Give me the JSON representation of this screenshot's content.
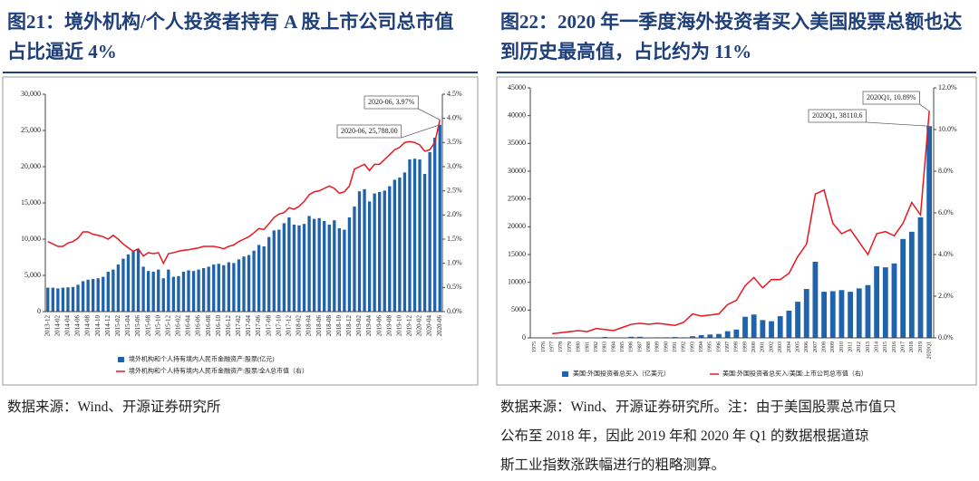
{
  "chart_data": [
    {
      "type": "bar",
      "title": [
        "图21：境外机构/个人投资者持有 A 股上市公司总市值",
        "占比逼近 4%"
      ],
      "categories": [
        "2013-12",
        null,
        "2014-02",
        null,
        "2014-04",
        null,
        "2014-06",
        null,
        "2014-08",
        null,
        "2014-10",
        null,
        "2014-12",
        null,
        "2015-02",
        null,
        "2015-04",
        null,
        "2015-06",
        null,
        "2015-08",
        null,
        "2015-10",
        null,
        "2015-12",
        null,
        "2016-02",
        null,
        "2016-04",
        null,
        "2016-06",
        null,
        "2016-08",
        null,
        "2016-10",
        null,
        "2016-12",
        null,
        "2017-02",
        null,
        "2017-04",
        null,
        "2017-06",
        null,
        "2017-08",
        null,
        "2017-10",
        null,
        "2017-12",
        null,
        "2018-02",
        null,
        "2018-04",
        null,
        "2018-06",
        null,
        "2018-08",
        null,
        "2018-10",
        null,
        "2018-12",
        null,
        "2019-02",
        null,
        "2019-04",
        null,
        "2019-06",
        null,
        "2019-08",
        null,
        "2019-10",
        null,
        "2019-12",
        null,
        "2020-02",
        null,
        "2020-04",
        null,
        "2020-06"
      ],
      "series": [
        {
          "name": "境外机构和个人持有境内人民币金融资产:股票(亿元)",
          "color": "#1f63ad",
          "values": [
            3300,
            3300,
            3200,
            3300,
            3350,
            3400,
            3700,
            4200,
            4400,
            4500,
            4600,
            4800,
            5500,
            5800,
            6500,
            7300,
            7900,
            8300,
            8600,
            6200,
            5600,
            5500,
            5800,
            4600,
            5800,
            4800,
            4900,
            5500,
            5700,
            5600,
            5800,
            6000,
            6200,
            6500,
            6600,
            6400,
            6800,
            6700,
            7200,
            7600,
            7800,
            8400,
            9200,
            9000,
            10300,
            11200,
            11300,
            12200,
            13000,
            12000,
            11900,
            12100,
            13200,
            12800,
            12900,
            12500,
            12000,
            12600,
            11500,
            11300,
            13000,
            14500,
            16600,
            16900,
            15200,
            16300,
            16500,
            16700,
            17300,
            18200,
            18500,
            19200,
            21000,
            21100,
            21000,
            19000,
            22000,
            24000,
            25788
          ]
        },
        {
          "name": "境外机构和个人持有境内人民币金融资产:股票/全A总市值（右）",
          "color": "#e8171f",
          "type": "line",
          "axis": "y2",
          "values": [
            1.45,
            1.4,
            1.35,
            1.35,
            1.42,
            1.45,
            1.52,
            1.65,
            1.65,
            1.6,
            1.58,
            1.55,
            1.5,
            1.58,
            1.5,
            1.4,
            1.32,
            1.25,
            1.3,
            1.15,
            1.22,
            1.2,
            1.22,
            1.0,
            1.2,
            1.22,
            1.25,
            1.27,
            1.28,
            1.3,
            1.32,
            1.35,
            1.35,
            1.35,
            1.33,
            1.3,
            1.35,
            1.38,
            1.45,
            1.5,
            1.55,
            1.63,
            1.72,
            1.7,
            1.82,
            1.95,
            2.02,
            2.05,
            2.15,
            2.12,
            2.18,
            2.28,
            2.42,
            2.48,
            2.5,
            2.55,
            2.6,
            2.55,
            2.45,
            2.48,
            2.6,
            2.95,
            3.0,
            3.05,
            2.92,
            3.05,
            3.05,
            3.15,
            3.25,
            3.35,
            3.4,
            3.5,
            3.52,
            3.5,
            3.45,
            3.32,
            3.35,
            3.5,
            3.97
          ]
        }
      ],
      "ylim": [
        0,
        30000
      ],
      "yticks": [
        0,
        {
          "value": 5000,
          "label": "5,000"
        },
        {
          "value": 10000,
          "label": "10,000"
        },
        {
          "value": 15000,
          "label": "15,000"
        },
        {
          "value": 20000,
          "label": "20,000"
        },
        {
          "value": 25000,
          "label": "25,000"
        },
        {
          "value": 30000,
          "label": "30,000"
        }
      ],
      "y2lim": [
        0,
        4.5
      ],
      "y2ticks": [
        {
          "value": 0,
          "label": "0.0%"
        },
        {
          "value": 0.5,
          "label": "0.5%"
        },
        {
          "value": 1,
          "label": "1.0%"
        },
        {
          "value": 1.5,
          "label": "1.5%"
        },
        {
          "value": 2,
          "label": "2.0%"
        },
        {
          "value": 2.5,
          "label": "2.5%"
        },
        {
          "value": 3,
          "label": "3.0%"
        },
        {
          "value": 3.5,
          "label": "3.5%"
        },
        {
          "value": 4,
          "label": "4.0%"
        },
        {
          "value": 4.5,
          "label": "4.5%"
        }
      ],
      "annotations": [
        "2020-06, 3.97%",
        "2020-06, 25,788.00"
      ],
      "source": [
        "数据来源：Wind、开源证券研究所"
      ]
    },
    {
      "type": "bar",
      "title": [
        "图22：2020 年一季度海外投资者买入美国股票总额也达",
        "到历史最高值，占比约为 11%"
      ],
      "categories": [
        "1975",
        "1976",
        "1977",
        "1978",
        "1979",
        "1980",
        "1981",
        "1982",
        "1983",
        "1984",
        "1985",
        "1986",
        "1987",
        "1988",
        "1989",
        "1990",
        "1991",
        "1992",
        "1993",
        "1994",
        "1995",
        "1996",
        "1997",
        "1998",
        "1999",
        "2000",
        "2001",
        "2002",
        "2003",
        "2004",
        "2005",
        "2006",
        "2007",
        "2008",
        "2009",
        "2010",
        "2011",
        "2012",
        "2013",
        "2014",
        "2015",
        "2016",
        "2017",
        "2018",
        "2019",
        "2020Q1"
      ],
      "series": [
        {
          "name": "美国:外国投资者总买入（亿美元）",
          "color": "#1f63ad",
          "values": [
            0,
            0,
            0,
            0,
            0,
            50,
            50,
            50,
            150,
            0,
            50,
            200,
            200,
            0,
            100,
            100,
            150,
            100,
            300,
            500,
            600,
            700,
            1200,
            1500,
            3800,
            4200,
            3200,
            3000,
            3900,
            4900,
            6500,
            8800,
            13700,
            8300,
            8400,
            8600,
            8300,
            8900,
            9500,
            12900,
            12700,
            13400,
            17800,
            19100,
            21700,
            38110.6
          ]
        },
        {
          "name": "美国:外国投资者总买入/美国:上市公司总市值（右）",
          "color": "#e8171f",
          "type": "line",
          "axis": "y2",
          "values": [
            null,
            null,
            0.2,
            0.25,
            0.3,
            0.35,
            0.3,
            0.45,
            0.4,
            0.35,
            0.5,
            0.65,
            0.7,
            0.65,
            0.7,
            0.65,
            0.6,
            0.75,
            1.15,
            1.05,
            1.1,
            1.15,
            1.6,
            1.8,
            2.5,
            2.9,
            2.4,
            2.8,
            2.8,
            3.1,
            3.9,
            4.5,
            6.9,
            7.1,
            5.5,
            5.0,
            5.2,
            4.6,
            4.0,
            5.0,
            5.1,
            4.9,
            5.5,
            6.5,
            5.9,
            10.89
          ]
        }
      ],
      "ylim": [
        0,
        45000
      ],
      "yticks": [
        0,
        5000,
        10000,
        15000,
        20000,
        25000,
        30000,
        35000,
        40000,
        45000
      ],
      "y2lim": [
        0,
        12
      ],
      "y2ticks": [
        {
          "value": 0,
          "label": "0.0%"
        },
        {
          "value": 2,
          "label": "2.0%"
        },
        {
          "value": 4,
          "label": "4.0%"
        },
        {
          "value": 6,
          "label": "6.0%"
        },
        {
          "value": 8,
          "label": "8.0%"
        },
        {
          "value": 10,
          "label": "10.0%"
        },
        {
          "value": 12,
          "label": "12.0%"
        }
      ],
      "annotations": [
        "2020Q1, 10.89%",
        "2020Q1, 38110.6"
      ],
      "source": [
        "数据来源：Wind、开源证券研究所。注：由于美国股票总市值只",
        "公布至 2018 年，因此 2019 年和 2020 年 Q1 的数据根据道琼",
        "斯工业指数涨跌幅进行的粗略测算。"
      ]
    }
  ]
}
